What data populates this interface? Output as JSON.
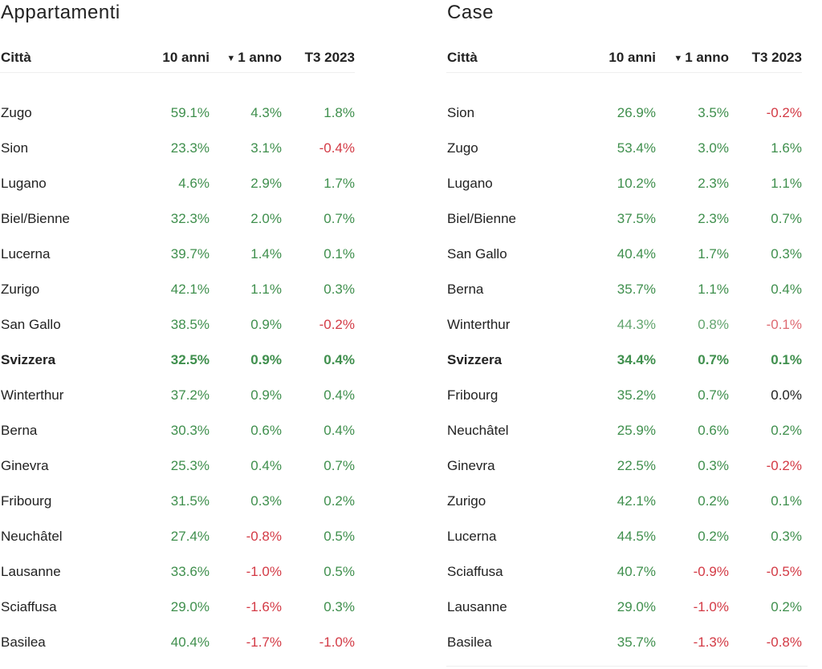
{
  "colors": {
    "positive": "#3f8f4d",
    "negative": "#d33a45",
    "neutral": "#222222"
  },
  "headers": {
    "city": "Città",
    "ten_years": "10 anni",
    "one_year": "1 anno",
    "q3": "T3 2023",
    "sort_icon": "▼"
  },
  "apartments": {
    "title": "Appartamenti",
    "rows": [
      {
        "city": "Zugo",
        "ten": "59.1%",
        "one": "4.3%",
        "q3": "1.8%"
      },
      {
        "city": "Sion",
        "ten": "23.3%",
        "one": "3.1%",
        "q3": "-0.4%"
      },
      {
        "city": "Lugano",
        "ten": "4.6%",
        "one": "2.9%",
        "q3": "1.7%"
      },
      {
        "city": "Biel/Bienne",
        "ten": "32.3%",
        "one": "2.0%",
        "q3": "0.7%"
      },
      {
        "city": "Lucerna",
        "ten": "39.7%",
        "one": "1.4%",
        "q3": "0.1%"
      },
      {
        "city": "Zurigo",
        "ten": "42.1%",
        "one": "1.1%",
        "q3": "0.3%"
      },
      {
        "city": "San Gallo",
        "ten": "38.5%",
        "one": "0.9%",
        "q3": "-0.2%"
      },
      {
        "city": "Svizzera",
        "ten": "32.5%",
        "one": "0.9%",
        "q3": "0.4%",
        "bold": true
      },
      {
        "city": "Winterthur",
        "ten": "37.2%",
        "one": "0.9%",
        "q3": "0.4%"
      },
      {
        "city": "Berna",
        "ten": "30.3%",
        "one": "0.6%",
        "q3": "0.4%"
      },
      {
        "city": "Ginevra",
        "ten": "25.3%",
        "one": "0.4%",
        "q3": "0.7%"
      },
      {
        "city": "Fribourg",
        "ten": "31.5%",
        "one": "0.3%",
        "q3": "0.2%"
      },
      {
        "city": "Neuchâtel",
        "ten": "27.4%",
        "one": "-0.8%",
        "q3": "0.5%"
      },
      {
        "city": "Lausanne",
        "ten": "33.6%",
        "one": "-1.0%",
        "q3": "0.5%"
      },
      {
        "city": "Sciaffusa",
        "ten": "29.0%",
        "one": "-1.6%",
        "q3": "0.3%"
      },
      {
        "city": "Basilea",
        "ten": "40.4%",
        "one": "-1.7%",
        "q3": "-1.0%"
      }
    ]
  },
  "houses": {
    "title": "Case",
    "rows": [
      {
        "city": "Sion",
        "ten": "26.9%",
        "one": "3.5%",
        "q3": "-0.2%"
      },
      {
        "city": "Zugo",
        "ten": "53.4%",
        "one": "3.0%",
        "q3": "1.6%"
      },
      {
        "city": "Lugano",
        "ten": "10.2%",
        "one": "2.3%",
        "q3": "1.1%"
      },
      {
        "city": "Biel/Bienne",
        "ten": "37.5%",
        "one": "2.3%",
        "q3": "0.7%"
      },
      {
        "city": "San Gallo",
        "ten": "40.4%",
        "one": "1.7%",
        "q3": "0.3%"
      },
      {
        "city": "Berna",
        "ten": "35.7%",
        "one": "1.1%",
        "q3": "0.4%"
      },
      {
        "city": "Winterthur",
        "ten": "44.3%",
        "one": "0.8%",
        "q3": "-0.1%",
        "muted": true
      },
      {
        "city": "Svizzera",
        "ten": "34.4%",
        "one": "0.7%",
        "q3": "0.1%",
        "bold": true
      },
      {
        "city": "Fribourg",
        "ten": "35.2%",
        "one": "0.7%",
        "q3": "0.0%"
      },
      {
        "city": "Neuchâtel",
        "ten": "25.9%",
        "one": "0.6%",
        "q3": "0.2%"
      },
      {
        "city": "Ginevra",
        "ten": "22.5%",
        "one": "0.3%",
        "q3": "-0.2%"
      },
      {
        "city": "Zurigo",
        "ten": "42.1%",
        "one": "0.2%",
        "q3": "0.1%"
      },
      {
        "city": "Lucerna",
        "ten": "44.5%",
        "one": "0.2%",
        "q3": "0.3%"
      },
      {
        "city": "Sciaffusa",
        "ten": "40.7%",
        "one": "-0.9%",
        "q3": "-0.5%"
      },
      {
        "city": "Lausanne",
        "ten": "29.0%",
        "one": "-1.0%",
        "q3": "0.2%"
      },
      {
        "city": "Basilea",
        "ten": "35.7%",
        "one": "-1.3%",
        "q3": "-0.8%"
      }
    ]
  }
}
